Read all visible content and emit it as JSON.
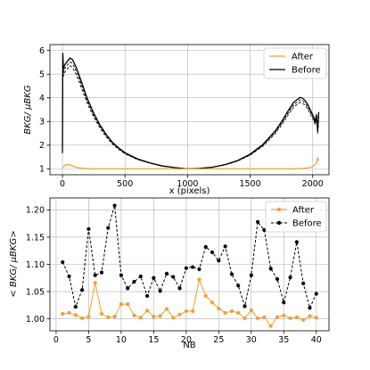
{
  "chart_data": [
    {
      "type": "line",
      "xlabel": "x (pixels)",
      "ylabel": "BKG/ μBKG",
      "xlim": [
        -100,
        2130
      ],
      "ylim": [
        0.75,
        6.25
      ],
      "xticks": [
        0,
        500,
        1000,
        1500,
        2000
      ],
      "yticks": [
        1,
        2,
        3,
        4,
        5,
        6
      ],
      "grid": true,
      "legend": "top-right",
      "colors": {
        "after": "#f0a030",
        "before": "#000000"
      },
      "series": [
        {
          "name": "After",
          "x": [
            0,
            10,
            20,
            40,
            60,
            80,
            100,
            130,
            160,
            200,
            300,
            500,
            800,
            1000,
            1300,
            1600,
            1800,
            1900,
            1950,
            1980,
            2000,
            2020,
            2030,
            2040,
            2048
          ],
          "values": [
            1.05,
            1.1,
            1.15,
            1.18,
            1.17,
            1.13,
            1.08,
            1.04,
            1.02,
            1.01,
            1.0,
            1.0,
            1.0,
            1.0,
            1.0,
            1.0,
            1.0,
            1.01,
            1.03,
            1.06,
            1.1,
            1.18,
            1.25,
            1.45,
            1.35
          ]
        },
        {
          "name": "Before",
          "x": [
            0,
            3,
            8,
            15,
            25,
            40,
            60,
            80,
            100,
            120,
            150,
            200,
            250,
            300,
            350,
            400,
            450,
            500,
            600,
            700,
            800,
            900,
            1000,
            1100,
            1200,
            1300,
            1400,
            1500,
            1600,
            1700,
            1750,
            1800,
            1850,
            1900,
            1920,
            1940,
            1960,
            1980,
            2000,
            2010,
            2020,
            2030,
            2040,
            2048
          ],
          "values": [
            1.7,
            5.9,
            5.2,
            5.35,
            5.45,
            5.55,
            5.68,
            5.62,
            5.4,
            5.15,
            4.7,
            3.95,
            3.35,
            2.85,
            2.45,
            2.12,
            1.88,
            1.68,
            1.42,
            1.25,
            1.12,
            1.05,
            1.0,
            1.02,
            1.07,
            1.18,
            1.35,
            1.62,
            2.02,
            2.6,
            2.98,
            3.42,
            3.82,
            4.02,
            3.98,
            3.88,
            3.72,
            3.5,
            3.28,
            3.15,
            3.0,
            3.3,
            2.6,
            3.4
          ]
        }
      ]
    },
    {
      "type": "line",
      "xlabel": "NB",
      "ylabel": "< BKG/ μBKG>",
      "xlim": [
        -0.95,
        41.95
      ],
      "ylim": [
        0.978,
        1.222
      ],
      "xticks": [
        0,
        5,
        10,
        15,
        20,
        25,
        30,
        35,
        40
      ],
      "yticks": [
        1.0,
        1.05,
        1.1,
        1.15,
        1.2
      ],
      "grid": true,
      "legend": "top-right",
      "colors": {
        "after": "#f0a030",
        "before": "#000000"
      },
      "x": [
        1,
        2,
        3,
        4,
        5,
        6,
        7,
        8,
        9,
        10,
        11,
        12,
        13,
        14,
        15,
        16,
        17,
        18,
        19,
        20,
        21,
        22,
        23,
        24,
        25,
        26,
        27,
        28,
        29,
        30,
        31,
        32,
        33,
        34,
        35,
        36,
        37,
        38,
        39,
        40
      ],
      "series": [
        {
          "name": "After",
          "values": [
            1.009,
            1.011,
            1.007,
            1.001,
            1.004,
            1.066,
            1.009,
            1.003,
            1.004,
            1.027,
            1.027,
            1.006,
            1.002,
            1.015,
            1.004,
            1.005,
            1.018,
            1.002,
            1.008,
            1.014,
            1.014,
            1.072,
            1.042,
            1.03,
            1.019,
            1.011,
            1.014,
            1.011,
            1.001,
            1.016,
            1.001,
            1.003,
            0.987,
            1.003,
            1.006,
            1.001,
            1.003,
            0.998,
            1.005,
            1.002
          ]
        },
        {
          "name": "Before",
          "values": [
            1.104,
            1.078,
            1.022,
            1.053,
            1.165,
            1.08,
            1.085,
            1.167,
            1.208,
            1.08,
            1.056,
            1.068,
            1.078,
            1.042,
            1.075,
            1.051,
            1.083,
            1.077,
            1.056,
            1.093,
            1.095,
            1.091,
            1.132,
            1.122,
            1.107,
            1.133,
            1.082,
            1.061,
            1.023,
            1.08,
            1.178,
            1.163,
            1.092,
            1.073,
            1.03,
            1.076,
            1.141,
            1.065,
            1.02,
            1.046
          ]
        }
      ]
    }
  ]
}
